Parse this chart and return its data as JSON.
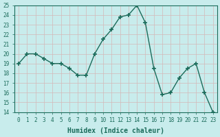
{
  "x": [
    0,
    1,
    2,
    3,
    4,
    5,
    6,
    7,
    8,
    9,
    10,
    11,
    12,
    13,
    14,
    15,
    16,
    17,
    18,
    19,
    20,
    21,
    22,
    23
  ],
  "y": [
    19.0,
    20.0,
    20.0,
    19.5,
    19.0,
    19.0,
    18.5,
    17.8,
    17.8,
    20.0,
    21.5,
    22.5,
    23.8,
    24.0,
    25.0,
    23.2,
    18.5,
    15.8,
    16.0,
    17.5,
    18.5,
    19.0,
    16.0,
    14.0
  ],
  "line_color": "#1a6b5a",
  "marker": "+",
  "marker_size": 4,
  "marker_lw": 1.2,
  "line_width": 1.0,
  "bg_color": "#c8ecec",
  "grid_color": "#d4b8b8",
  "xlabel": "Humidex (Indice chaleur)",
  "ylim": [
    14,
    25
  ],
  "xlim": [
    -0.5,
    23.5
  ],
  "yticks": [
    14,
    15,
    16,
    17,
    18,
    19,
    20,
    21,
    22,
    23,
    24,
    25
  ],
  "xticks": [
    0,
    1,
    2,
    3,
    4,
    5,
    6,
    7,
    8,
    9,
    10,
    11,
    12,
    13,
    14,
    15,
    16,
    17,
    18,
    19,
    20,
    21,
    22,
    23
  ],
  "tick_color": "#1a6b5a",
  "label_fontsize": 7,
  "tick_fontsize": 5.5
}
